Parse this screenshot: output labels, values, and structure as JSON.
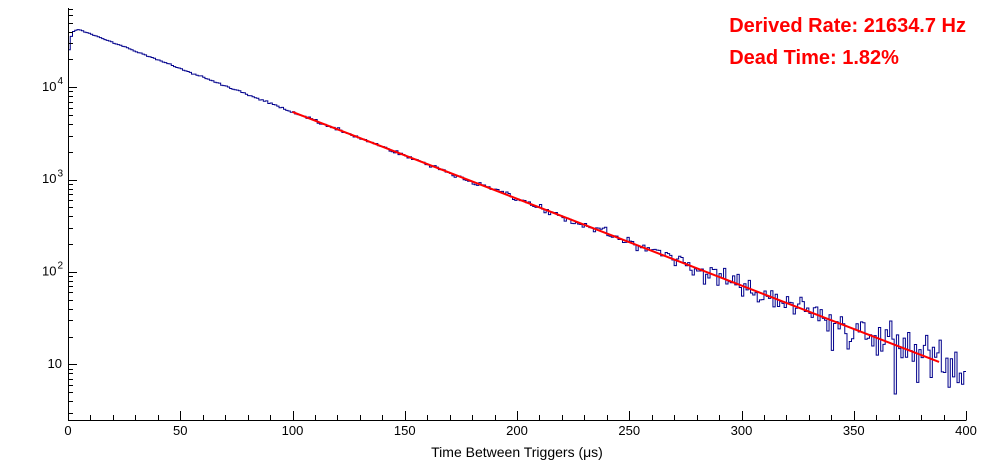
{
  "chart_data": {
    "type": "line",
    "subtype": "step-histogram-with-exponential-fit",
    "title": "",
    "xlabel": "Time Between Triggers (μs)",
    "ylabel": "",
    "x_range": [
      0,
      400
    ],
    "y_scale": "log",
    "y_range": [
      2.5,
      72000
    ],
    "x_major_ticks": [
      0,
      50,
      100,
      150,
      200,
      250,
      300,
      350,
      400
    ],
    "x_minor_tick_step": 10,
    "y_decade_ticks": [
      10,
      100,
      1000,
      10000
    ],
    "y_tick_labels": [
      {
        "value": 10,
        "base": "10",
        "exp": ""
      },
      {
        "value": 100,
        "base": "10",
        "exp": "2"
      },
      {
        "value": 1000,
        "base": "10",
        "exp": "3"
      },
      {
        "value": 10000,
        "base": "10",
        "exp": "4"
      }
    ],
    "grid": false,
    "legend": "none",
    "series": [
      {
        "name": "time-between-triggers-histogram",
        "style": "step-histogram",
        "color": "#00008c",
        "bins": 400,
        "bin_width_us": 1,
        "model": "A*exp(-lambda*x)",
        "amplitude": 47000,
        "lambda_per_us": 0.0216347,
        "turn_on_ramp": [
          0.55,
          0.78,
          0.9,
          0.96,
          0.99
        ],
        "sampled_points": {
          "x": [
            0,
            5,
            20,
            40,
            60,
            80,
            100,
            120,
            140,
            160,
            180,
            200,
            220,
            240,
            260,
            280,
            300,
            320,
            340,
            360,
            380,
            400
          ],
          "y": [
            26000,
            42000,
            30500,
            19800,
            12800,
            8330,
            5400,
            3510,
            2280,
            1480,
            958,
            621,
            403,
            262,
            170,
            110,
            71,
            46,
            30,
            20,
            13,
            8
          ]
        }
      },
      {
        "name": "exponential-fit",
        "style": "line",
        "color": "#ff0000",
        "x_start": 100,
        "x_end": 388,
        "amplitude": 47000,
        "lambda_per_us": 0.0216347
      }
    ],
    "annotations": [
      {
        "text": "Derived Rate: 21634.7 Hz",
        "color": "#ff0000"
      },
      {
        "text": "Dead Time: 1.82%",
        "color": "#ff0000"
      }
    ]
  }
}
